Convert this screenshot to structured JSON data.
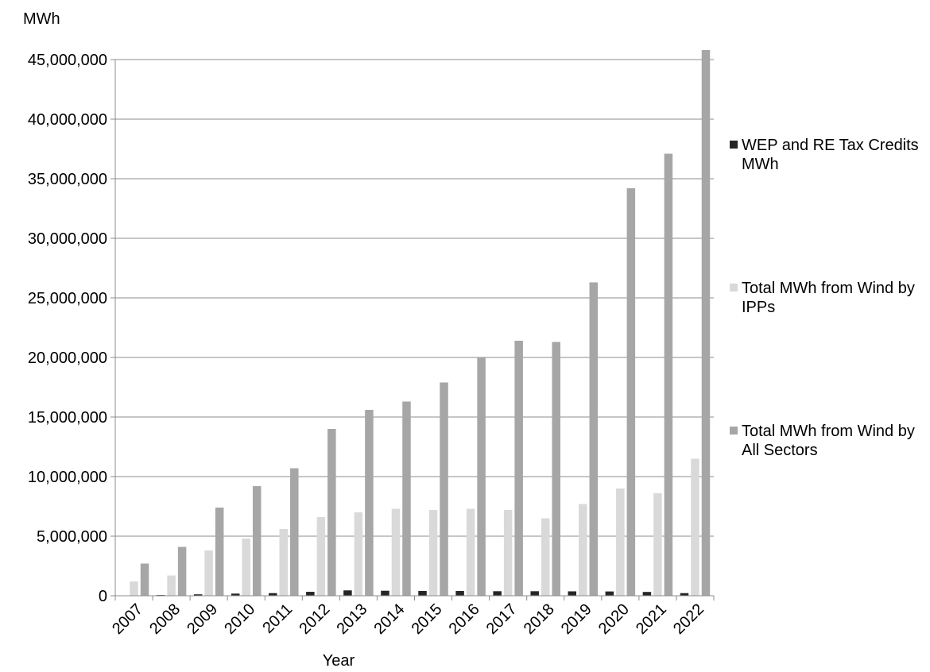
{
  "chart_data": {
    "type": "bar",
    "title": "",
    "ylabel": "MWh",
    "xlabel": "Year",
    "ylim": [
      0,
      45000000
    ],
    "yticks": [
      0,
      5000000,
      10000000,
      15000000,
      20000000,
      25000000,
      30000000,
      35000000,
      40000000,
      45000000
    ],
    "ytick_labels": [
      "0",
      "5,000,000",
      "10,000,000",
      "15,000,000",
      "20,000,000",
      "25,000,000",
      "30,000,000",
      "35,000,000",
      "40,000,000",
      "45,000,000"
    ],
    "categories": [
      "2007",
      "2008",
      "2009",
      "2010",
      "2011",
      "2012",
      "2013",
      "2014",
      "2015",
      "2016",
      "2017",
      "2018",
      "2019",
      "2020",
      "2021",
      "2022"
    ],
    "grid": true,
    "legend_position": "right",
    "series": [
      {
        "name": "WEP and RE Tax Credits MWh",
        "color": "#262626",
        "values": [
          20000,
          60000,
          120000,
          180000,
          220000,
          330000,
          450000,
          420000,
          400000,
          400000,
          380000,
          380000,
          370000,
          360000,
          320000,
          220000
        ]
      },
      {
        "name": "Total MWh from Wind by IPPs",
        "color": "#d9d9d9",
        "values": [
          1200000,
          1700000,
          3800000,
          4800000,
          5600000,
          6600000,
          7000000,
          7300000,
          7200000,
          7300000,
          7200000,
          6500000,
          7700000,
          9000000,
          8600000,
          11500000
        ]
      },
      {
        "name": "Total MWh from Wind by All Sectors",
        "color": "#a6a6a6",
        "values": [
          2700000,
          4100000,
          7400000,
          9200000,
          10700000,
          14000000,
          15600000,
          16300000,
          17900000,
          20000000,
          21400000,
          21300000,
          26300000,
          34200000,
          37100000,
          45800000
        ]
      }
    ]
  }
}
